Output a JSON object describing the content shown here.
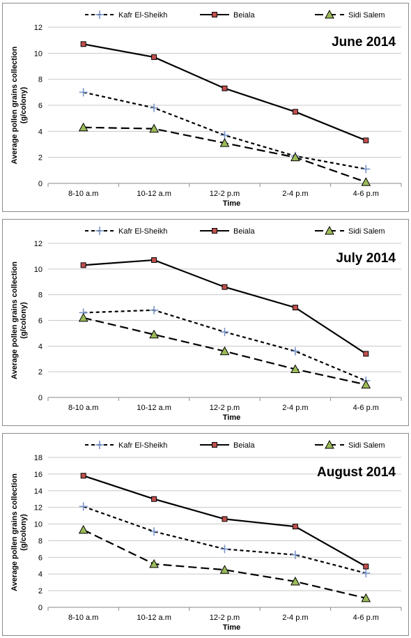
{
  "chart_data": [
    {
      "type": "line",
      "title": "June 2014",
      "xlabel": "Time",
      "ylabel": "Average pollen grains collection (g/colony)",
      "categories": [
        "8-10 a.m",
        "10-12 a.m",
        "12-2 p.m",
        "2-4 p.m",
        "4-6 p.m"
      ],
      "ylim": [
        0,
        12
      ],
      "yticks": [
        0,
        2,
        4,
        6,
        8,
        10,
        12
      ],
      "grid": true,
      "legend": "top",
      "series": [
        {
          "name": "Kafr El-Sheikh",
          "values": [
            7.0,
            5.8,
            3.7,
            2.1,
            1.1
          ],
          "color": "#000000",
          "dash": "short",
          "marker": "plus",
          "marker_color": "#7a95c9"
        },
        {
          "name": "Beiala",
          "values": [
            10.7,
            9.7,
            7.3,
            5.5,
            3.3
          ],
          "color": "#000000",
          "dash": "solid",
          "marker": "square",
          "marker_color": "#c0504d"
        },
        {
          "name": "Sidi Salem",
          "values": [
            4.3,
            4.2,
            3.1,
            2.0,
            0.1
          ],
          "color": "#000000",
          "dash": "long",
          "marker": "triangle",
          "marker_color": "#9bbb59"
        }
      ]
    },
    {
      "type": "line",
      "title": "July 2014",
      "xlabel": "Time",
      "ylabel": "Average pollen grains collection (g/colony)",
      "categories": [
        "8-10 a.m",
        "10-12 a.m",
        "12-2 p.m",
        "2-4 p.m",
        "4-6 p.m"
      ],
      "ylim": [
        0,
        12
      ],
      "yticks": [
        0,
        2,
        4,
        6,
        8,
        10,
        12
      ],
      "grid": true,
      "legend": "top",
      "series": [
        {
          "name": "Kafr El-Sheikh",
          "values": [
            6.6,
            6.8,
            5.1,
            3.6,
            1.3
          ],
          "color": "#000000",
          "dash": "short",
          "marker": "plus",
          "marker_color": "#7a95c9"
        },
        {
          "name": "Beiala",
          "values": [
            10.3,
            10.7,
            8.6,
            7.0,
            3.4
          ],
          "color": "#000000",
          "dash": "solid",
          "marker": "square",
          "marker_color": "#c0504d"
        },
        {
          "name": "Sidi Salem",
          "values": [
            6.2,
            4.9,
            3.6,
            2.2,
            1.0
          ],
          "color": "#000000",
          "dash": "long",
          "marker": "triangle",
          "marker_color": "#9bbb59"
        }
      ]
    },
    {
      "type": "line",
      "title": "August 2014",
      "xlabel": "Time",
      "ylabel": "Average pollen grains collection (g/colony)",
      "categories": [
        "8-10 a.m",
        "10-12 a.m",
        "12-2 p.m",
        "2-4 p.m",
        "4-6 p.m"
      ],
      "ylim": [
        0,
        18
      ],
      "yticks": [
        0,
        2,
        4,
        6,
        8,
        10,
        12,
        14,
        16,
        18
      ],
      "grid": true,
      "legend": "top",
      "series": [
        {
          "name": "Kafr El-Sheikh",
          "values": [
            12.1,
            9.1,
            7.0,
            6.3,
            4.1
          ],
          "color": "#000000",
          "dash": "short",
          "marker": "plus",
          "marker_color": "#7a95c9"
        },
        {
          "name": "Beiala",
          "values": [
            15.8,
            13.0,
            10.6,
            9.7,
            4.9
          ],
          "color": "#000000",
          "dash": "solid",
          "marker": "square",
          "marker_color": "#c0504d"
        },
        {
          "name": "Sidi Salem",
          "values": [
            9.3,
            5.2,
            4.5,
            3.1,
            1.1
          ],
          "color": "#000000",
          "dash": "long",
          "marker": "triangle",
          "marker_color": "#9bbb59"
        }
      ]
    }
  ]
}
